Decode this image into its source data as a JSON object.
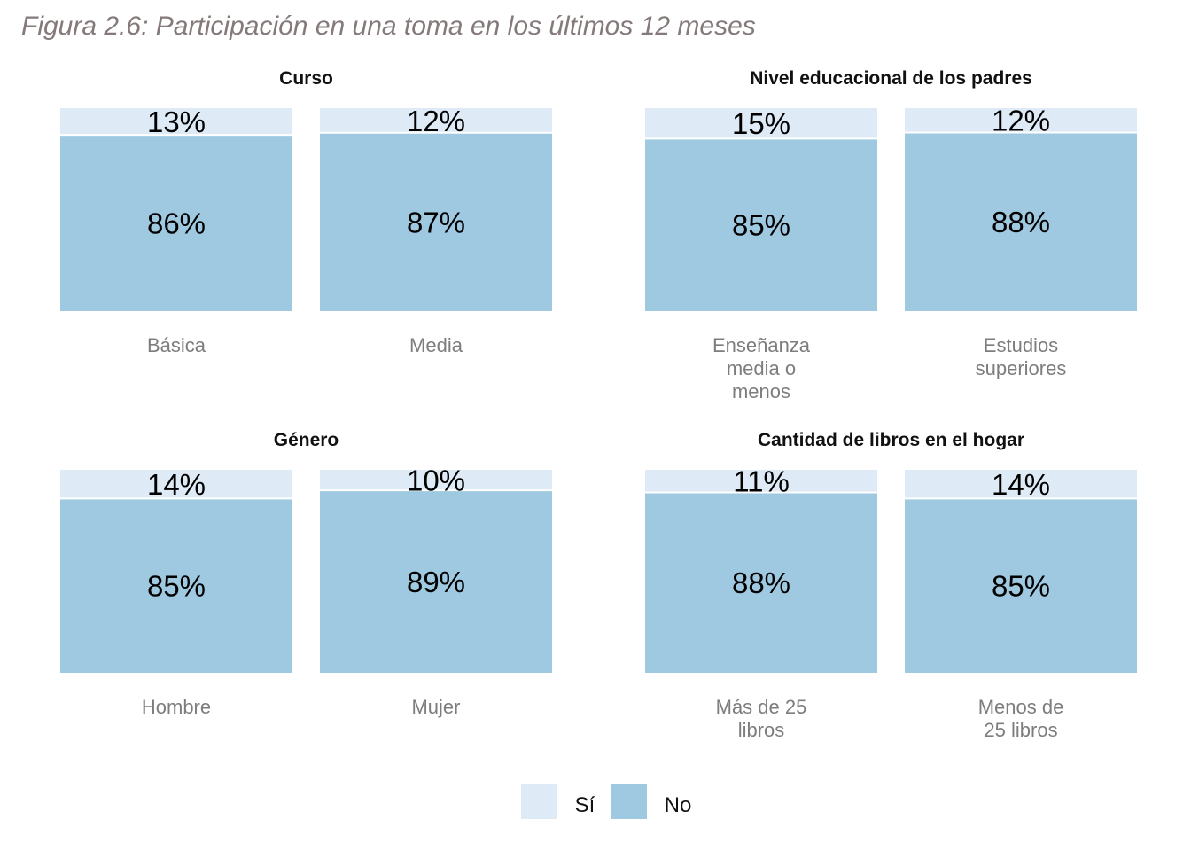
{
  "figure": {
    "title": "Figura 2.6: Participación en una toma en los últimos 12 meses"
  },
  "colors": {
    "si": "#deeaf6",
    "no": "#9fc9e1"
  },
  "legend": {
    "position": "bottom",
    "items": [
      {
        "key": "si",
        "label": "Sí"
      },
      {
        "key": "no",
        "label": "No"
      }
    ]
  },
  "chart_data": [
    {
      "type": "bar",
      "stacked": true,
      "title": "Curso",
      "categories": [
        [
          "Básica"
        ],
        [
          "Media"
        ]
      ],
      "series": [
        {
          "name": "Sí",
          "values": [
            13,
            12
          ]
        },
        {
          "name": "No",
          "values": [
            86,
            87
          ]
        }
      ]
    },
    {
      "type": "bar",
      "stacked": true,
      "title": "Nivel educacional de los padres",
      "categories": [
        [
          "Enseñanza",
          "media o",
          "menos"
        ],
        [
          "Estudios",
          "superiores"
        ]
      ],
      "series": [
        {
          "name": "Sí",
          "values": [
            15,
            12
          ]
        },
        {
          "name": "No",
          "values": [
            85,
            88
          ]
        }
      ]
    },
    {
      "type": "bar",
      "stacked": true,
      "title": "Género",
      "categories": [
        [
          "Hombre"
        ],
        [
          "Mujer"
        ]
      ],
      "series": [
        {
          "name": "Sí",
          "values": [
            14,
            10
          ]
        },
        {
          "name": "No",
          "values": [
            85,
            89
          ]
        }
      ]
    },
    {
      "type": "bar",
      "stacked": true,
      "title": "Cantidad de libros en el hogar",
      "categories": [
        [
          "Más de 25",
          "libros"
        ],
        [
          "Menos de",
          "25 libros"
        ]
      ],
      "series": [
        {
          "name": "Sí",
          "values": [
            11,
            14
          ]
        },
        {
          "name": "No",
          "values": [
            88,
            85
          ]
        }
      ]
    }
  ]
}
